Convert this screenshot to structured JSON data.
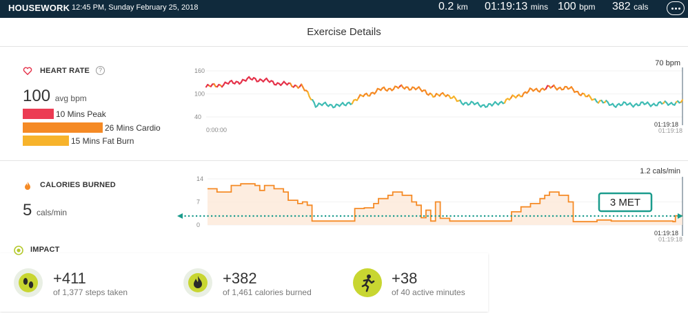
{
  "header": {
    "activity": "HOUSEWORK",
    "datetime": "12:45 PM, Sunday February 25, 2018",
    "distance": "0.2",
    "distance_unit": "km",
    "duration": "01:19:13",
    "duration_unit": "mins",
    "heart_rate": "100",
    "heart_rate_unit": "bpm",
    "calories": "382",
    "calories_unit": "cals"
  },
  "page_title": "Exercise Details",
  "heart_rate": {
    "title": "HEART RATE",
    "help": "?",
    "avg_value": "100",
    "avg_unit": "avg bpm",
    "zones": [
      {
        "label": "10 Mins Peak",
        "color": "#ec3b53",
        "minutes": 10
      },
      {
        "label": "26 Mins Cardio",
        "color": "#f58a25",
        "minutes": 26
      },
      {
        "label": "15 Mins Fat Burn",
        "color": "#f7b32b",
        "minutes": 15
      }
    ]
  },
  "hr_chart": {
    "y_ticks": [
      "160",
      "100",
      "40"
    ],
    "cursor_label": "70 bpm",
    "x_start": "0:00:00",
    "x_end": "01:19:18",
    "x_end_shadow": "01:19:18",
    "colors": {
      "peak": "#e5334b",
      "cardio": "#f58a25",
      "fatburn": "#f7b32b",
      "below": "#3fbcb4"
    }
  },
  "calories": {
    "title": "CALORIES BURNED",
    "value": "5",
    "unit": "cals/min"
  },
  "cal_chart": {
    "y_ticks": [
      "14",
      "7",
      "0"
    ],
    "cursor_label": "1.2 cals/min",
    "x_end": "01:19:18",
    "x_end_shadow": "01:19:18",
    "met_label": "3 MET",
    "line_color": "#f58a25",
    "met_color": "#1a9b8c"
  },
  "impact": {
    "title": "IMPACT",
    "items": [
      {
        "value": "+411",
        "sub": "of 1,377 steps taken",
        "icon": "footprints-icon"
      },
      {
        "value": "+382",
        "sub": "of 1,461 calories burned",
        "icon": "flame-icon"
      },
      {
        "value": "+38",
        "sub": "of 40 active minutes",
        "icon": "running-person-icon"
      }
    ]
  }
}
